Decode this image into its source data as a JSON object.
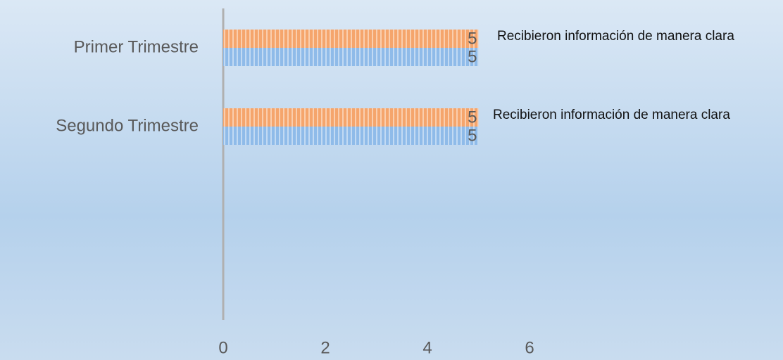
{
  "chart_data": {
    "type": "hbar",
    "categories": [
      "Primer Trimestre",
      "Segundo Trimestre"
    ],
    "series": [
      {
        "color": "#f5a56c",
        "values": [
          5,
          5
        ]
      },
      {
        "color": "#8fbbe9",
        "values": [
          5,
          5
        ]
      }
    ],
    "annotations": [
      "Recibieron información de manera clara",
      "Recibieron información de manera clara"
    ],
    "xlim": [
      0,
      6
    ],
    "xticks": [
      0,
      2,
      4,
      6
    ]
  }
}
